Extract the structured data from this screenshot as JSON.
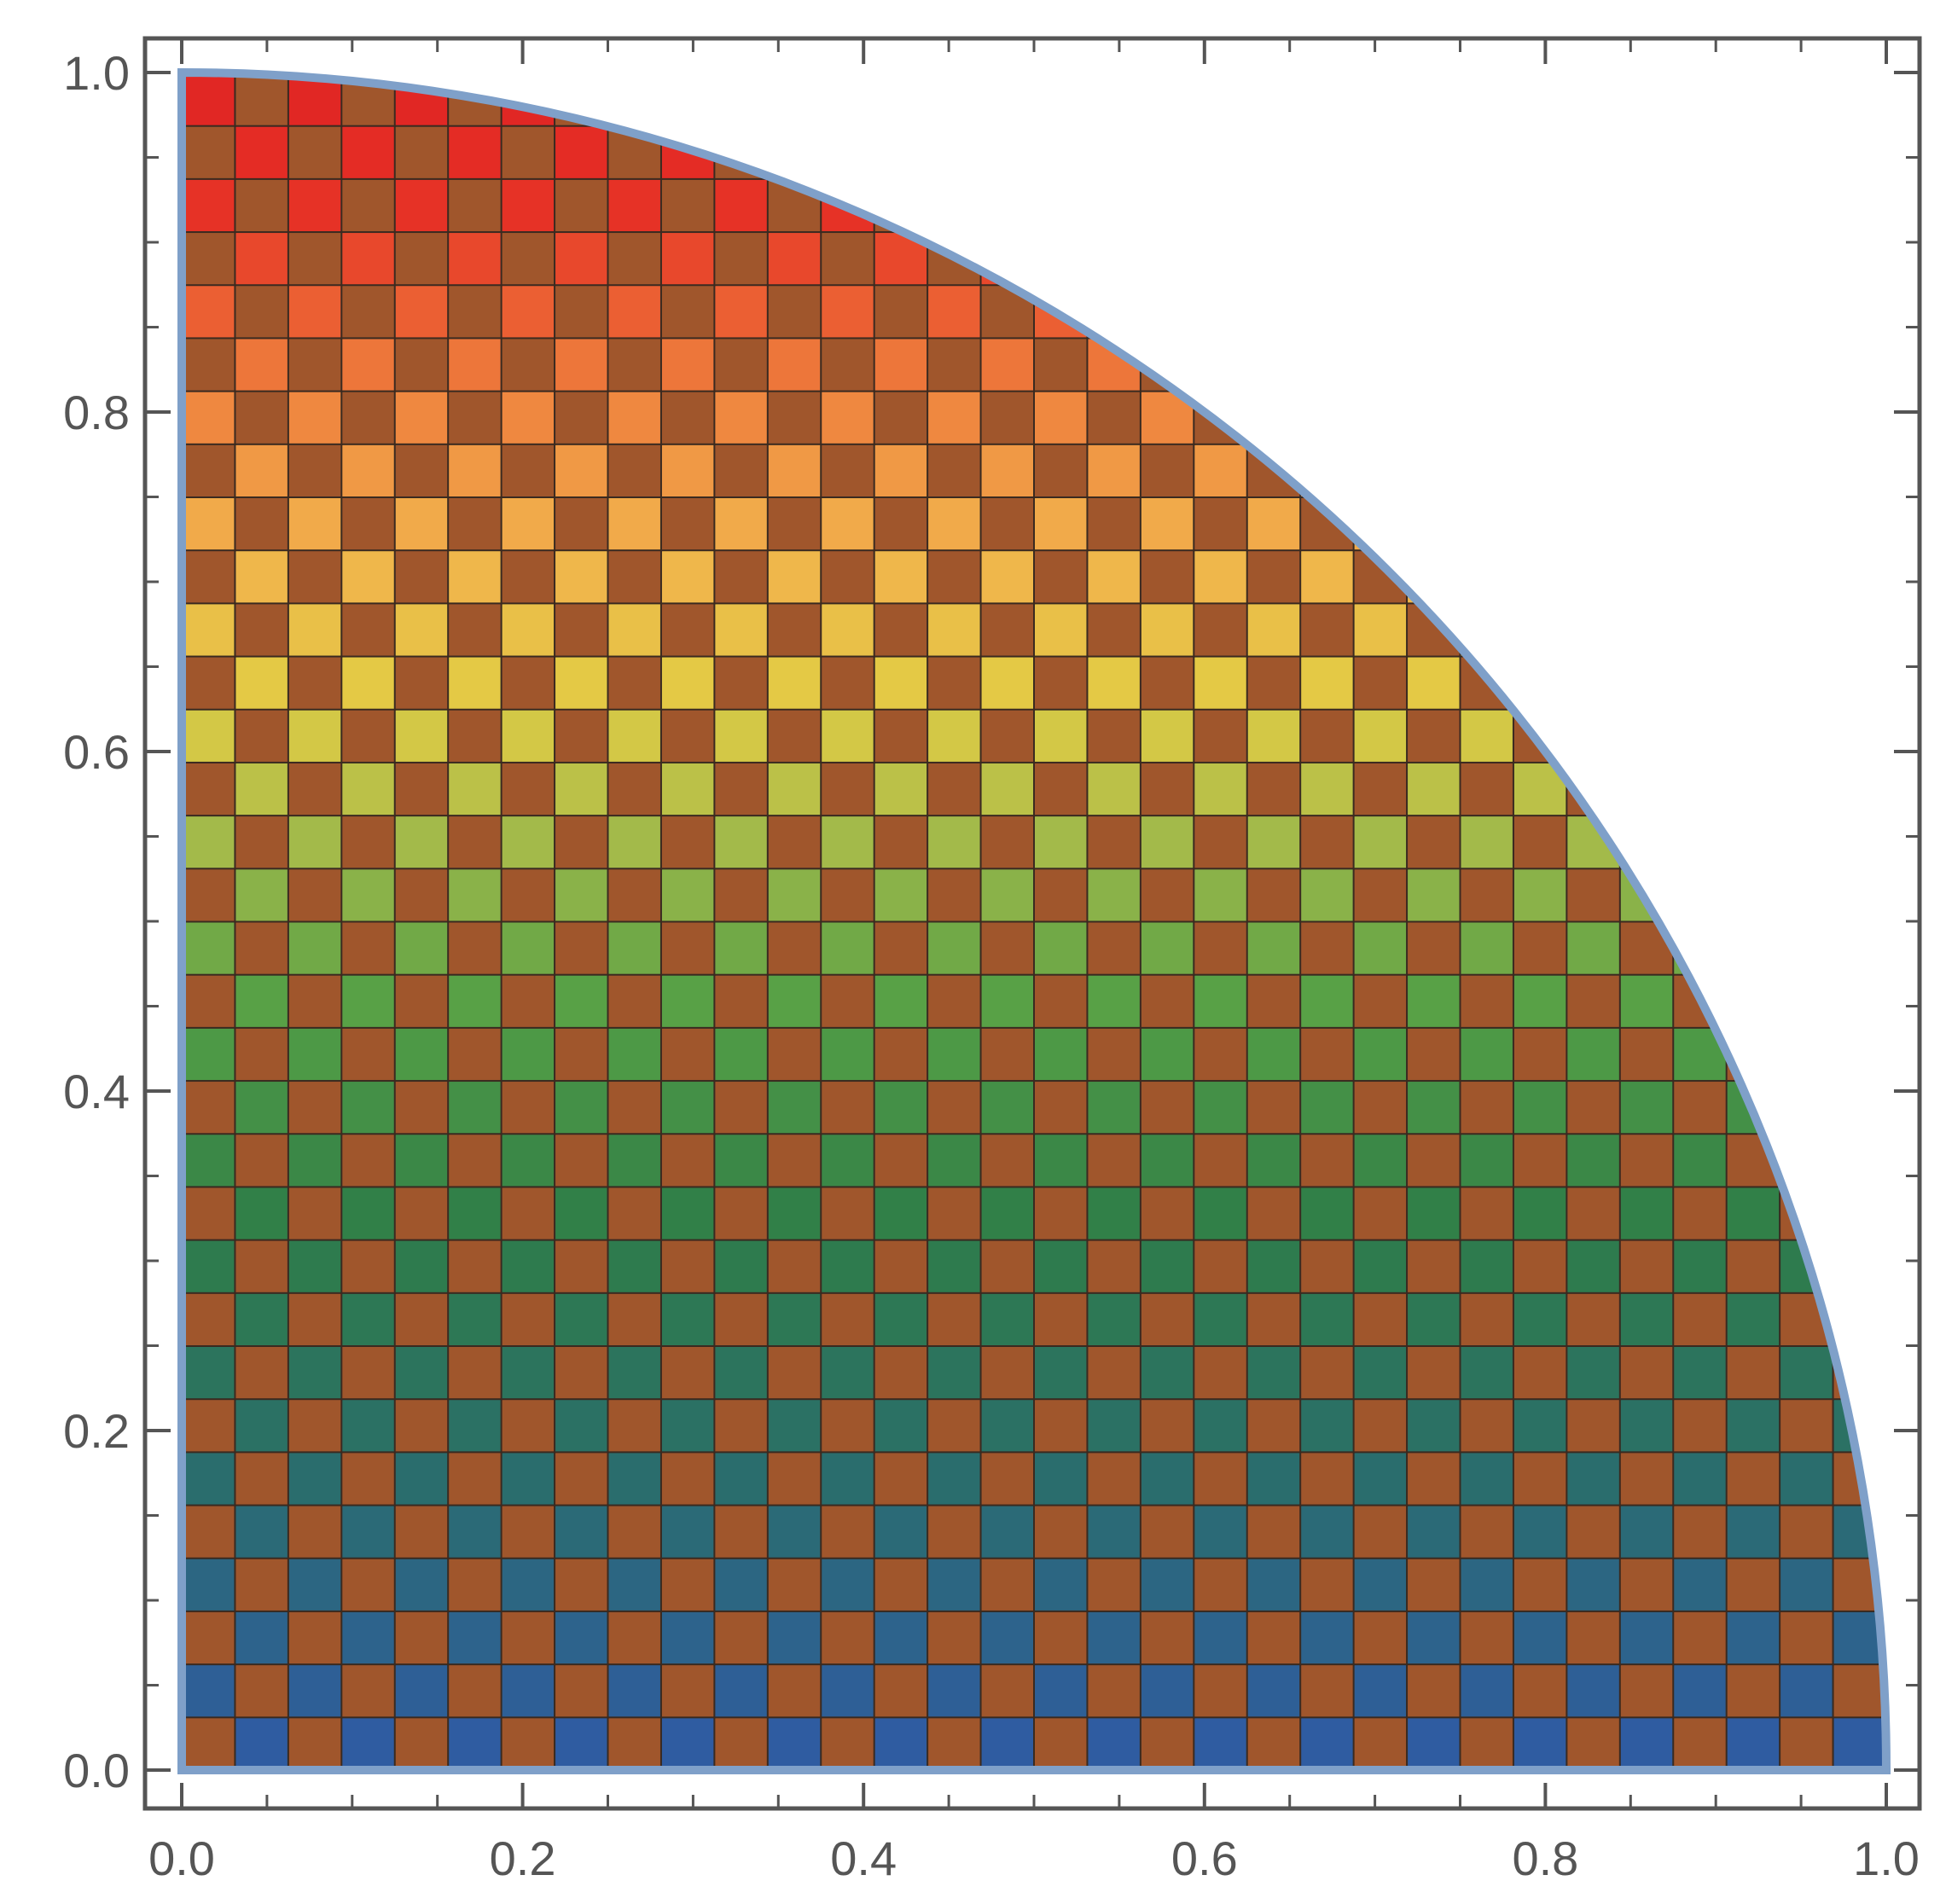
{
  "chart_data": {
    "type": "heatmap",
    "region": "quarter disk x^2 + y^2 <= 1, x >= 0, y >= 0",
    "pattern": "checkerboard",
    "grid_cells_per_axis": 32,
    "xlim": [
      0.0,
      1.0
    ],
    "ylim": [
      0.0,
      1.0
    ],
    "x_ticks": [
      "0.0",
      "0.2",
      "0.4",
      "0.6",
      "0.8",
      "1.0"
    ],
    "y_ticks": [
      "0.0",
      "0.2",
      "0.4",
      "0.6",
      "0.8",
      "1.0"
    ],
    "color_gradient_by_y": [
      {
        "y": 0.0,
        "color": "#2f5aa6"
      },
      {
        "y": 0.18,
        "color": "#2a6e6a"
      },
      {
        "y": 0.32,
        "color": "#2f7e48"
      },
      {
        "y": 0.45,
        "color": "#55a046"
      },
      {
        "y": 0.55,
        "color": "#a6bb4a"
      },
      {
        "y": 0.63,
        "color": "#e2cc44"
      },
      {
        "y": 0.72,
        "color": "#f2b24c"
      },
      {
        "y": 0.82,
        "color": "#ee7c3c"
      },
      {
        "y": 0.92,
        "color": "#e63226"
      },
      {
        "y": 1.0,
        "color": "#e02424"
      }
    ],
    "alternate_cell_color": "#a0562c",
    "boundary_color": "#7fa0c9"
  },
  "axes": {
    "frame_color": "#555555",
    "grid": false
  }
}
